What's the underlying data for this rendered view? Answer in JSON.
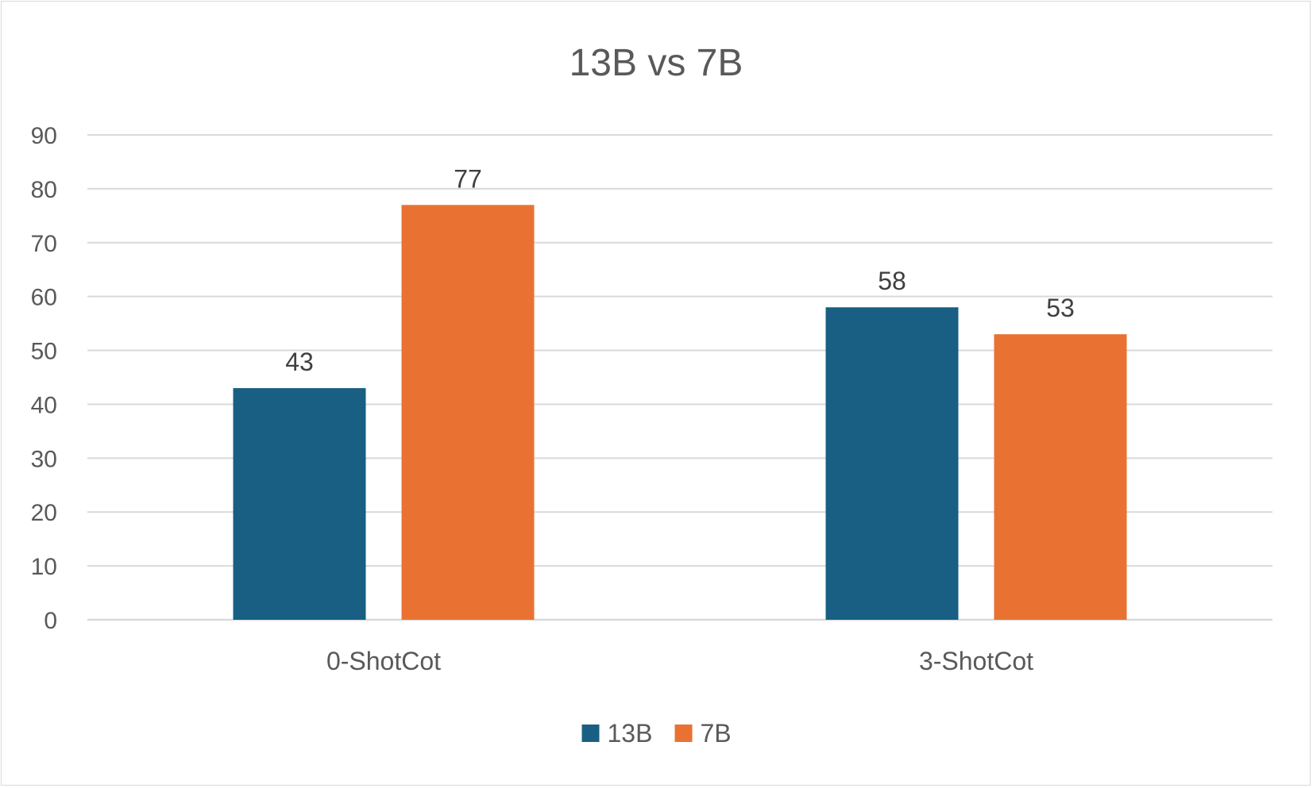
{
  "chart_data": {
    "type": "bar",
    "title": "13B vs 7B",
    "categories": [
      "0-ShotCot",
      "3-ShotCot"
    ],
    "series": [
      {
        "name": "13B",
        "values": [
          43,
          58
        ],
        "color": "#185f83"
      },
      {
        "name": "7B",
        "values": [
          77,
          53
        ],
        "color": "#e97232"
      }
    ],
    "ylim": [
      0,
      90
    ],
    "yticks": [
      0,
      10,
      20,
      30,
      40,
      50,
      60,
      70,
      80,
      90
    ],
    "grid": true,
    "data_labels": true,
    "legend": "bottom"
  }
}
